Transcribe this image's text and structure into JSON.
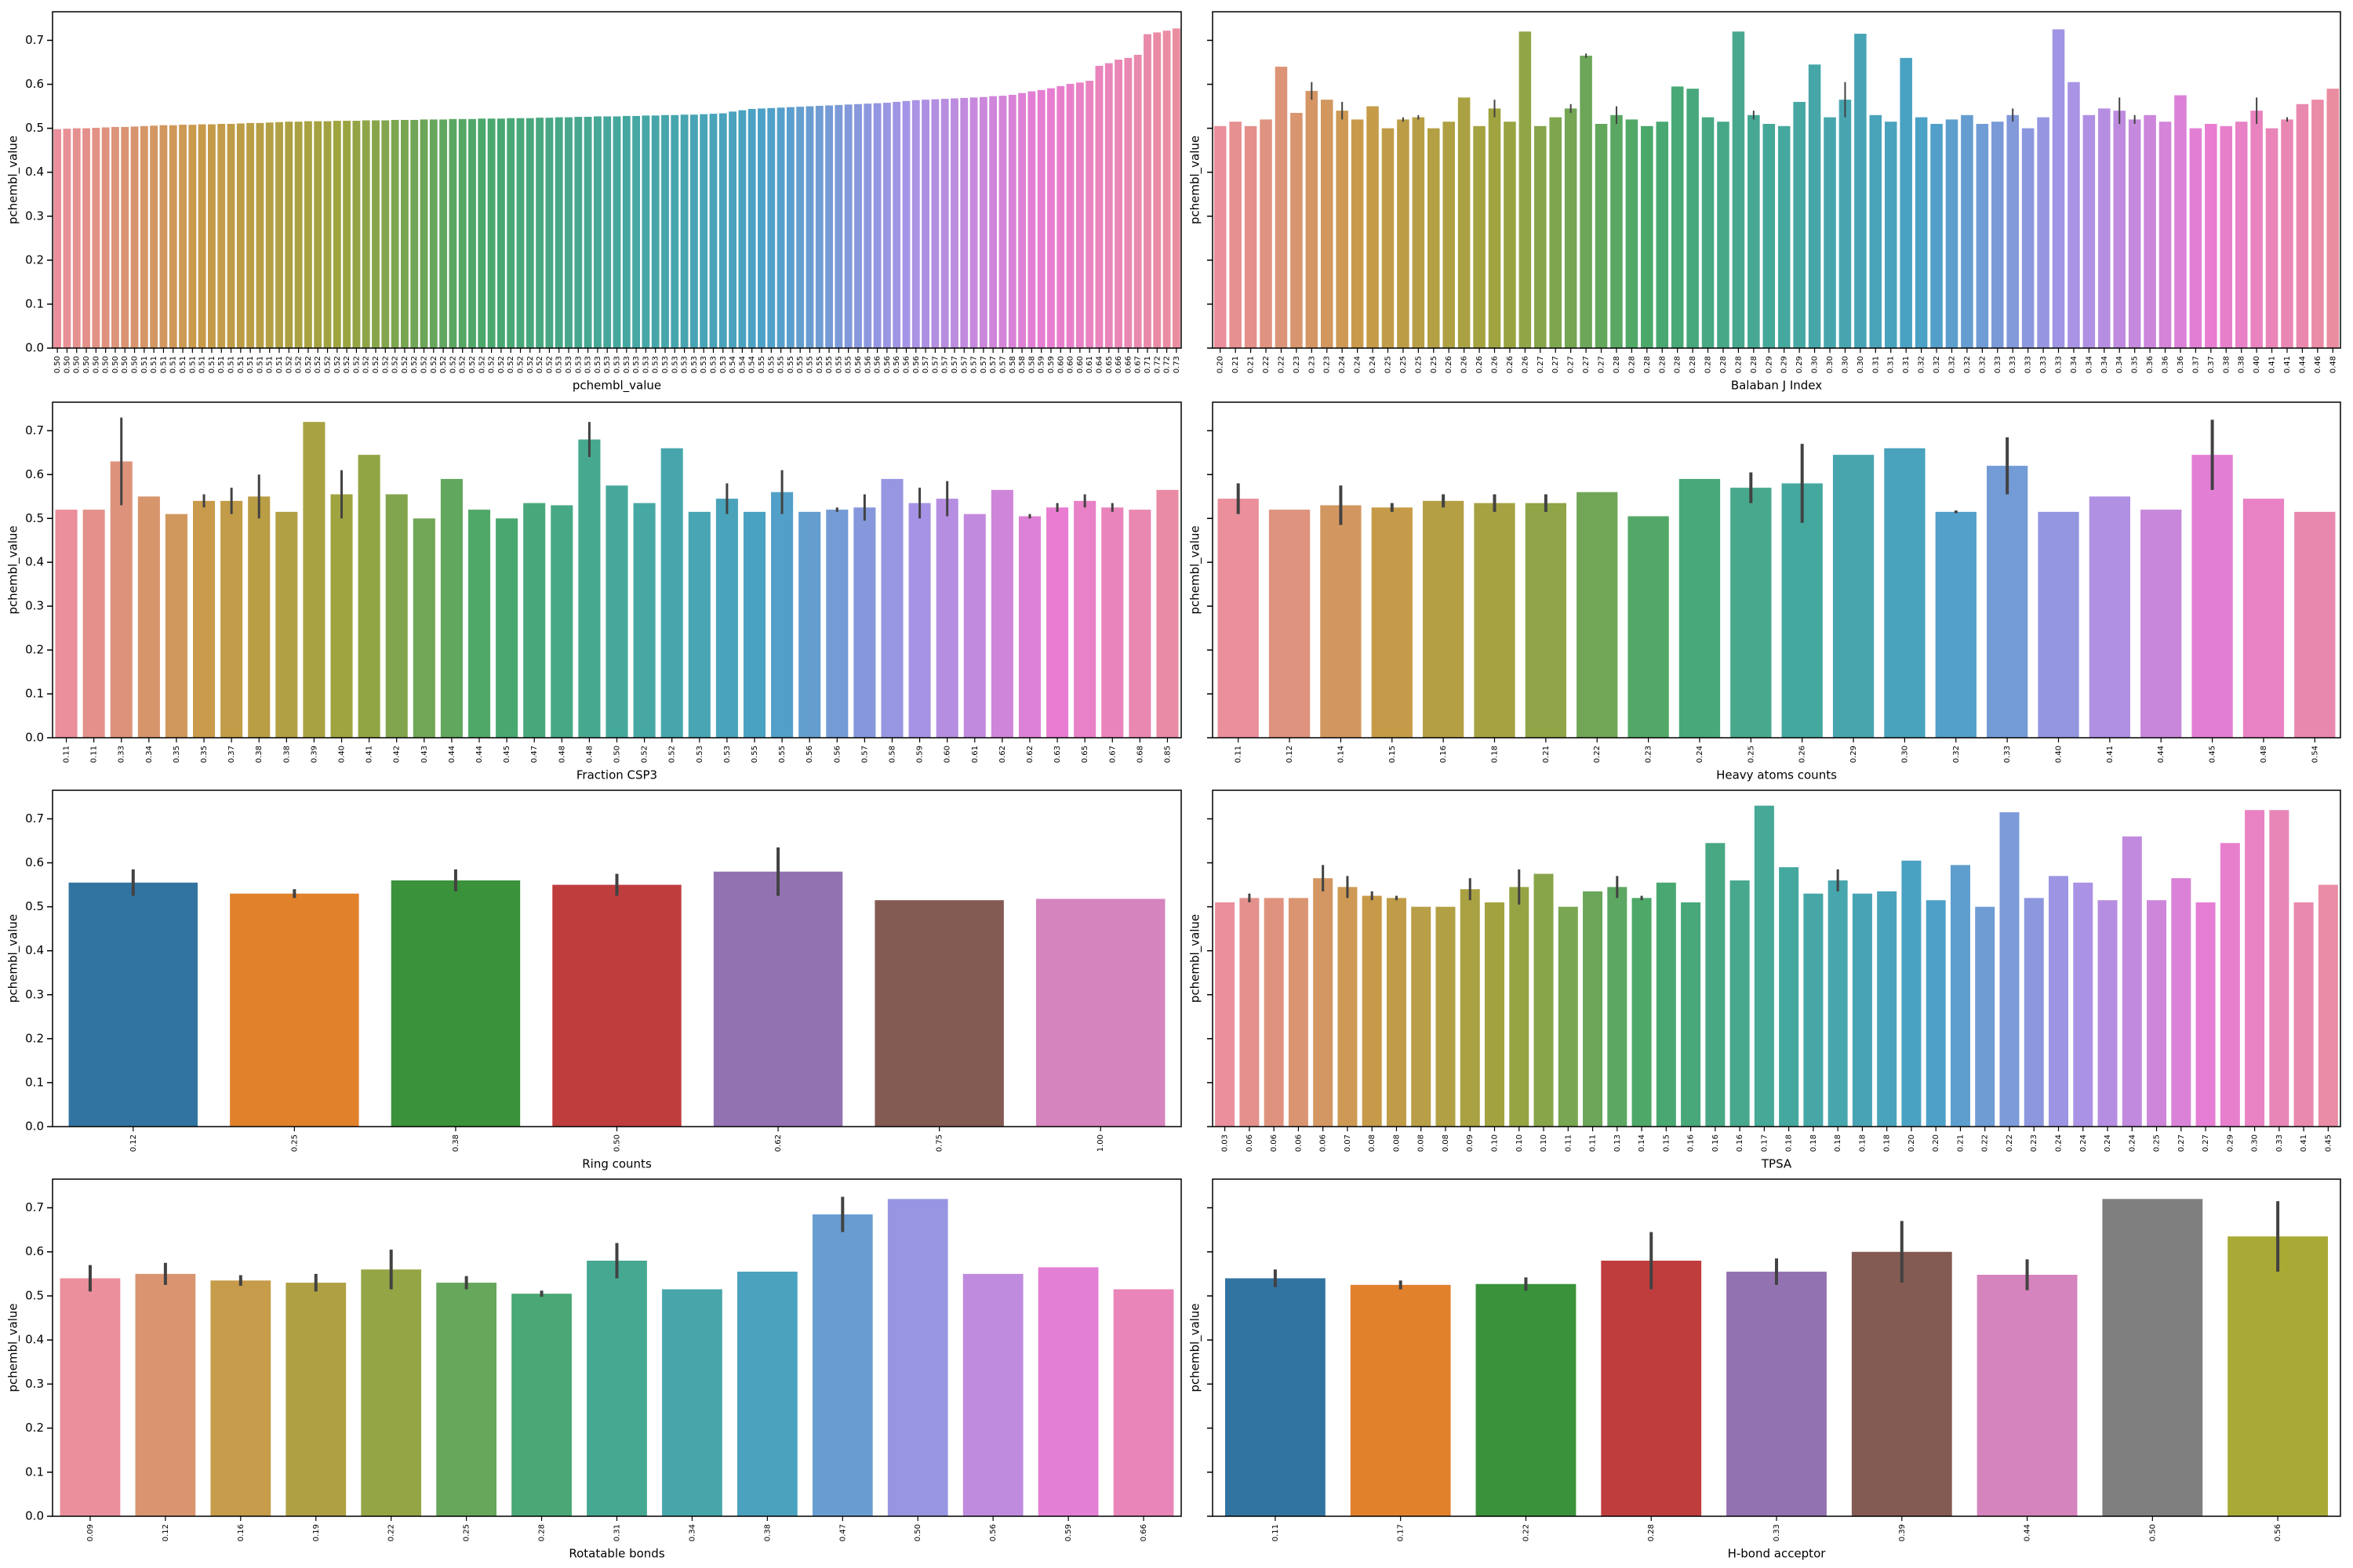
{
  "chart_data": [
    {
      "type": "bar",
      "xlabel": "pchembl_value",
      "ylabel": "pchembl_value",
      "palette": [
        "#ea8f9b",
        "#c99a4a",
        "#9ea43f",
        "#4aa86a",
        "#45a89f",
        "#4ba1c7",
        "#a494e6",
        "#e87dd3"
      ],
      "ylim": [
        0,
        0.765
      ],
      "yticks": [
        {
          "value": 0,
          "label": "0.0"
        },
        0.1,
        0.2,
        0.3,
        0.4,
        0.5,
        0.6,
        0.7
      ],
      "ytick_labels": true,
      "categories": [
        "0.50",
        "0.50",
        "0.50",
        "0.50",
        "0.50",
        "0.50",
        "0.50",
        "0.50",
        "0.50",
        "0.51",
        "0.51",
        "0.51",
        "0.51",
        "0.51",
        "0.51",
        "0.51",
        "0.51",
        "0.51",
        "0.51",
        "0.51",
        "0.51",
        "0.51",
        "0.51",
        "0.51",
        "0.52",
        "0.52",
        "0.52",
        "0.52",
        "0.52",
        "0.52",
        "0.52",
        "0.52",
        "0.52",
        "0.52",
        "0.52",
        "0.52",
        "0.52",
        "0.52",
        "0.52",
        "0.52",
        "0.52",
        "0.52",
        "0.52",
        "0.52",
        "0.52",
        "0.52",
        "0.52",
        "0.52",
        "0.52",
        "0.52",
        "0.52",
        "0.52",
        "0.53",
        "0.53",
        "0.53",
        "0.53",
        "0.53",
        "0.53",
        "0.53",
        "0.53",
        "0.53",
        "0.53",
        "0.53",
        "0.53",
        "0.53",
        "0.53",
        "0.53",
        "0.53",
        "0.53",
        "0.53",
        "0.54",
        "0.54",
        "0.54",
        "0.55",
        "0.55",
        "0.55",
        "0.55",
        "0.55",
        "0.55",
        "0.55",
        "0.55",
        "0.55",
        "0.55",
        "0.56",
        "0.56",
        "0.56",
        "0.56",
        "0.56",
        "0.56",
        "0.56",
        "0.57",
        "0.57",
        "0.57",
        "0.57",
        "0.57",
        "0.57",
        "0.57",
        "0.57",
        "0.57",
        "0.58",
        "0.58",
        "0.58",
        "0.59",
        "0.59",
        "0.60",
        "0.60",
        "0.60",
        "0.61",
        "0.64",
        "0.65",
        "0.66",
        "0.66",
        "0.67",
        "0.71",
        "0.72",
        "0.72",
        "0.73"
      ],
      "values": [
        0.498,
        0.499,
        0.5,
        0.5,
        0.501,
        0.502,
        0.503,
        0.503,
        0.504,
        0.505,
        0.506,
        0.507,
        0.507,
        0.508,
        0.508,
        0.509,
        0.509,
        0.51,
        0.51,
        0.511,
        0.512,
        0.512,
        0.513,
        0.514,
        0.515,
        0.515,
        0.516,
        0.516,
        0.516,
        0.517,
        0.517,
        0.517,
        0.518,
        0.518,
        0.518,
        0.519,
        0.519,
        0.519,
        0.52,
        0.52,
        0.52,
        0.521,
        0.521,
        0.521,
        0.522,
        0.522,
        0.522,
        0.523,
        0.523,
        0.523,
        0.524,
        0.524,
        0.525,
        0.525,
        0.526,
        0.526,
        0.527,
        0.527,
        0.527,
        0.528,
        0.528,
        0.529,
        0.529,
        0.53,
        0.53,
        0.531,
        0.531,
        0.532,
        0.533,
        0.534,
        0.538,
        0.541,
        0.544,
        0.545,
        0.546,
        0.547,
        0.548,
        0.549,
        0.55,
        0.551,
        0.552,
        0.553,
        0.554,
        0.555,
        0.556,
        0.557,
        0.558,
        0.56,
        0.562,
        0.564,
        0.565,
        0.566,
        0.567,
        0.568,
        0.569,
        0.57,
        0.571,
        0.573,
        0.574,
        0.576,
        0.58,
        0.584,
        0.587,
        0.591,
        0.596,
        0.601,
        0.604,
        0.608,
        0.642,
        0.648,
        0.656,
        0.66,
        0.667,
        0.714,
        0.718,
        0.722,
        0.727
      ]
    },
    {
      "type": "bar",
      "xlabel": "Balaban J Index",
      "ylabel": "pchembl_value",
      "palette": [
        "#ea8f9b",
        "#c99a4a",
        "#9ea43f",
        "#4aa86a",
        "#45a89f",
        "#4ba1c7",
        "#a494e6",
        "#e87dd3"
      ],
      "ylim": [
        0,
        0.765
      ],
      "yticks": [
        0,
        0.1,
        0.2,
        0.3,
        0.4,
        0.5,
        0.6,
        0.7
      ],
      "ytick_labels": false,
      "categories": [
        "0.20",
        "0.21",
        "0.21",
        "0.22",
        "0.22",
        "0.23",
        "0.23",
        "0.23",
        "0.24",
        "0.24",
        "0.24",
        "0.25",
        "0.25",
        "0.25",
        "0.25",
        "0.26",
        "0.26",
        "0.26",
        "0.26",
        "0.26",
        "0.26",
        "0.27",
        "0.27",
        "0.27",
        "0.27",
        "0.27",
        "0.28",
        "0.28",
        "0.28",
        "0.28",
        "0.28",
        "0.28",
        "0.28",
        "0.28",
        "0.28",
        "0.28",
        "0.29",
        "0.29",
        "0.29",
        "0.30",
        "0.30",
        "0.30",
        "0.30",
        "0.31",
        "0.31",
        "0.31",
        "0.32",
        "0.32",
        "0.32",
        "0.32",
        "0.32",
        "0.33",
        "0.33",
        "0.33",
        "0.33",
        "0.33",
        "0.34",
        "0.34",
        "0.34",
        "0.34",
        "0.35",
        "0.36",
        "0.36",
        "0.36",
        "0.37",
        "0.37",
        "0.38",
        "0.38",
        "0.40",
        "0.41",
        "0.41",
        "0.44",
        "0.46",
        "0.48"
      ],
      "values": [
        0.505,
        0.515,
        0.505,
        0.52,
        0.64,
        0.535,
        0.585,
        0.565,
        0.54,
        0.52,
        0.55,
        0.5,
        0.52,
        0.525,
        0.5,
        0.515,
        0.57,
        0.505,
        0.545,
        0.515,
        0.72,
        0.505,
        0.525,
        0.545,
        0.665,
        0.51,
        0.53,
        0.52,
        0.505,
        0.515,
        0.595,
        0.59,
        0.525,
        0.515,
        0.72,
        0.53,
        0.51,
        0.505,
        0.56,
        0.645,
        0.525,
        0.565,
        0.715,
        0.53,
        0.515,
        0.66,
        0.525,
        0.51,
        0.52,
        0.53,
        0.51,
        0.515,
        0.53,
        0.5,
        0.525,
        0.725,
        0.605,
        0.53,
        0.545,
        0.54,
        0.52,
        0.53,
        0.515,
        0.575,
        0.5,
        0.51,
        0.505,
        0.515,
        0.54,
        0.5,
        0.52,
        0.555,
        0.565,
        0.59
      ],
      "errors": [
        null,
        null,
        null,
        null,
        null,
        null,
        0.02,
        null,
        0.02,
        null,
        null,
        null,
        0.005,
        0.005,
        null,
        null,
        null,
        null,
        0.02,
        null,
        null,
        null,
        null,
        0.01,
        0.005,
        null,
        0.02,
        null,
        null,
        null,
        null,
        null,
        null,
        null,
        null,
        0.01,
        null,
        null,
        null,
        null,
        null,
        0.04,
        null,
        null,
        null,
        null,
        null,
        null,
        null,
        null,
        null,
        null,
        0.015,
        null,
        null,
        null,
        null,
        null,
        null,
        0.03,
        0.01,
        null,
        null,
        null,
        null,
        null,
        null,
        null,
        0.03,
        null,
        0.005,
        null,
        null,
        null
      ]
    },
    {
      "type": "bar",
      "xlabel": "Fraction CSP3",
      "ylabel": "pchembl_value",
      "palette": [
        "#ea8f9b",
        "#c99a4a",
        "#9ea43f",
        "#4aa86a",
        "#45a89f",
        "#4ba1c7",
        "#a494e6",
        "#e87dd3"
      ],
      "ylim": [
        0,
        0.765
      ],
      "yticks": [
        {
          "value": 0,
          "label": "0.0"
        },
        0.1,
        0.2,
        0.3,
        0.4,
        0.5,
        0.6,
        0.7
      ],
      "ytick_labels": true,
      "categories": [
        "0.11",
        "0.11",
        "0.33",
        "0.34",
        "0.35",
        "0.35",
        "0.37",
        "0.38",
        "0.38",
        "0.39",
        "0.40",
        "0.41",
        "0.42",
        "0.43",
        "0.44",
        "0.44",
        "0.45",
        "0.47",
        "0.48",
        "0.48",
        "0.50",
        "0.52",
        "0.52",
        "0.53",
        "0.53",
        "0.55",
        "0.55",
        "0.56",
        "0.56",
        "0.57",
        "0.58",
        "0.59",
        "0.60",
        "0.61",
        "0.62",
        "0.62",
        "0.63",
        "0.65",
        "0.67",
        "0.68",
        "0.85"
      ],
      "values": [
        0.52,
        0.52,
        0.63,
        0.55,
        0.51,
        0.54,
        0.54,
        0.55,
        0.515,
        0.72,
        0.555,
        0.645,
        0.555,
        0.5,
        0.59,
        0.52,
        0.5,
        0.535,
        0.53,
        0.68,
        0.575,
        0.535,
        0.66,
        0.515,
        0.545,
        0.515,
        0.56,
        0.515,
        0.52,
        0.525,
        0.59,
        0.535,
        0.545,
        0.51,
        0.565,
        0.505,
        0.525,
        0.54,
        0.525,
        0.52,
        0.565
      ],
      "errors": [
        null,
        null,
        0.1,
        null,
        null,
        0.015,
        0.03,
        0.05,
        null,
        null,
        0.055,
        null,
        null,
        null,
        null,
        null,
        null,
        null,
        null,
        0.04,
        null,
        null,
        null,
        null,
        0.035,
        null,
        0.05,
        null,
        0.005,
        0.03,
        null,
        0.035,
        0.04,
        null,
        null,
        0.005,
        0.01,
        0.015,
        0.01,
        null,
        null
      ]
    },
    {
      "type": "bar",
      "xlabel": "Heavy atoms counts",
      "ylabel": "pchembl_value",
      "palette": [
        "#ea8f9b",
        "#c99a4a",
        "#9ea43f",
        "#4aa86a",
        "#45a89f",
        "#4ba1c7",
        "#a494e6",
        "#e87dd3"
      ],
      "ylim": [
        0,
        0.765
      ],
      "yticks": [
        0,
        0.1,
        0.2,
        0.3,
        0.4,
        0.5,
        0.6,
        0.7
      ],
      "ytick_labels": false,
      "categories": [
        "0.11",
        "0.12",
        "0.14",
        "0.15",
        "0.16",
        "0.18",
        "0.21",
        "0.22",
        "0.23",
        "0.24",
        "0.25",
        "0.26",
        "0.29",
        "0.30",
        "0.32",
        "0.33",
        "0.40",
        "0.41",
        "0.44",
        "0.45",
        "0.48",
        "0.54"
      ],
      "values": [
        0.545,
        0.52,
        0.53,
        0.525,
        0.54,
        0.535,
        0.535,
        0.56,
        0.505,
        0.59,
        0.57,
        0.58,
        0.645,
        0.66,
        0.515,
        0.62,
        0.515,
        0.55,
        0.52,
        0.645,
        0.545,
        0.515
      ],
      "errors": [
        0.035,
        null,
        0.045,
        0.01,
        0.015,
        0.02,
        0.02,
        null,
        null,
        null,
        0.035,
        0.09,
        null,
        null,
        0.003,
        0.065,
        null,
        null,
        null,
        0.08,
        null,
        null
      ]
    },
    {
      "type": "bar",
      "xlabel": "Ring counts",
      "ylabel": "pchembl_value",
      "colors": [
        "#3274a1",
        "#e1812c",
        "#3a923a",
        "#c03d3e",
        "#9372b2",
        "#845b53",
        "#d684bd"
      ],
      "ylim": [
        0,
        0.765
      ],
      "yticks": [
        {
          "value": 0,
          "label": "0.0"
        },
        0.1,
        0.2,
        0.3,
        0.4,
        0.5,
        0.6,
        0.7
      ],
      "ytick_labels": true,
      "categories": [
        "0.12",
        "0.25",
        "0.38",
        "0.50",
        "0.62",
        "0.75",
        "1.00"
      ],
      "values": [
        0.555,
        0.53,
        0.56,
        0.55,
        0.58,
        0.515,
        0.518
      ],
      "errors": [
        0.03,
        0.01,
        0.025,
        0.025,
        0.055,
        null,
        null
      ]
    },
    {
      "type": "bar",
      "xlabel": "TPSA",
      "ylabel": "pchembl_value",
      "palette": [
        "#ea8f9b",
        "#c99a4a",
        "#9ea43f",
        "#4aa86a",
        "#45a89f",
        "#4ba1c7",
        "#a494e6",
        "#e87dd3"
      ],
      "ylim": [
        0,
        0.765
      ],
      "yticks": [
        0,
        0.1,
        0.2,
        0.3,
        0.4,
        0.5,
        0.6,
        0.7
      ],
      "ytick_labels": false,
      "categories": [
        "0.03",
        "0.06",
        "0.06",
        "0.06",
        "0.06",
        "0.07",
        "0.08",
        "0.08",
        "0.08",
        "0.08",
        "0.09",
        "0.10",
        "0.10",
        "0.10",
        "0.11",
        "0.11",
        "0.13",
        "0.14",
        "0.15",
        "0.16",
        "0.16",
        "0.16",
        "0.17",
        "0.18",
        "0.18",
        "0.18",
        "0.18",
        "0.18",
        "0.20",
        "0.20",
        "0.21",
        "0.22",
        "0.22",
        "0.23",
        "0.24",
        "0.24",
        "0.24",
        "0.24",
        "0.25",
        "0.27",
        "0.27",
        "0.29",
        "0.30",
        "0.33",
        "0.41",
        "0.45"
      ],
      "values": [
        0.51,
        0.52,
        0.52,
        0.52,
        0.565,
        0.545,
        0.525,
        0.52,
        0.5,
        0.5,
        0.54,
        0.51,
        0.545,
        0.575,
        0.5,
        0.535,
        0.545,
        0.52,
        0.555,
        0.51,
        0.645,
        0.56,
        0.73,
        0.59,
        0.53,
        0.56,
        0.53,
        0.535,
        0.605,
        0.515,
        0.595,
        0.5,
        0.715,
        0.52,
        0.57,
        0.555,
        0.515,
        0.66,
        0.515,
        0.565,
        0.51,
        0.645,
        0.72,
        0.72,
        0.51,
        0.55
      ],
      "errors": [
        null,
        0.01,
        null,
        null,
        0.03,
        0.025,
        0.01,
        0.005,
        null,
        null,
        0.025,
        null,
        0.04,
        null,
        null,
        null,
        0.025,
        0.005,
        null,
        null,
        null,
        null,
        null,
        null,
        null,
        0.025,
        null,
        null,
        null,
        null,
        null,
        null,
        null,
        null,
        null,
        null,
        null,
        null,
        null,
        null,
        null,
        null,
        null,
        null,
        null,
        null
      ]
    },
    {
      "type": "bar",
      "xlabel": "Rotatable bonds",
      "ylabel": "pchembl_value",
      "palette": [
        "#ea8f9b",
        "#c99a4a",
        "#9ea43f",
        "#4aa86a",
        "#45a89f",
        "#4ba1c7",
        "#a494e6",
        "#e87dd3"
      ],
      "ylim": [
        0,
        0.765
      ],
      "yticks": [
        {
          "value": 0,
          "label": "0.0"
        },
        0.1,
        0.2,
        0.3,
        0.4,
        0.5,
        0.6,
        0.7
      ],
      "ytick_labels": true,
      "categories": [
        "0.09",
        "0.12",
        "0.16",
        "0.19",
        "0.22",
        "0.25",
        "0.28",
        "0.31",
        "0.34",
        "0.38",
        "0.47",
        "0.50",
        "0.56",
        "0.59",
        "0.66"
      ],
      "values": [
        0.54,
        0.55,
        0.535,
        0.53,
        0.56,
        0.53,
        0.505,
        0.58,
        0.515,
        0.555,
        0.685,
        0.72,
        0.55,
        0.565,
        0.515
      ],
      "errors": [
        0.03,
        0.025,
        0.012,
        0.02,
        0.045,
        0.015,
        0.007,
        0.04,
        null,
        null,
        0.04,
        null,
        null,
        null,
        null
      ]
    },
    {
      "type": "bar",
      "xlabel": "H-bond acceptor",
      "ylabel": "pchembl_value",
      "colors": [
        "#3274a1",
        "#e1812c",
        "#3a923a",
        "#c03d3e",
        "#9372b2",
        "#845b53",
        "#d684bd",
        "#7f7f7f",
        "#a9aa35"
      ],
      "ylim": [
        0,
        0.765
      ],
      "yticks": [
        0,
        0.1,
        0.2,
        0.3,
        0.4,
        0.5,
        0.6,
        0.7
      ],
      "ytick_labels": false,
      "categories": [
        "0.11",
        "0.17",
        "0.22",
        "0.28",
        "0.33",
        "0.39",
        "0.44",
        "0.50",
        "0.56"
      ],
      "values": [
        0.54,
        0.525,
        0.527,
        0.58,
        0.555,
        0.6,
        0.548,
        0.72,
        0.635
      ],
      "errors": [
        0.02,
        0.01,
        0.015,
        0.065,
        0.03,
        0.07,
        0.035,
        null,
        0.08
      ]
    }
  ]
}
